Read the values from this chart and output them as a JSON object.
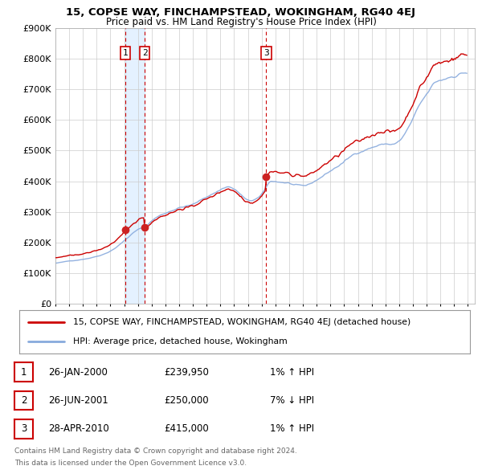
{
  "title": "15, COPSE WAY, FINCHAMPSTEAD, WOKINGHAM, RG40 4EJ",
  "subtitle": "Price paid vs. HM Land Registry's House Price Index (HPI)",
  "ylim": [
    0,
    900000
  ],
  "yticks": [
    0,
    100000,
    200000,
    300000,
    400000,
    500000,
    600000,
    700000,
    800000,
    900000
  ],
  "ytick_labels": [
    "£0",
    "£100K",
    "£200K",
    "£300K",
    "£400K",
    "£500K",
    "£600K",
    "£700K",
    "£800K",
    "£900K"
  ],
  "xlim_start": 1995.0,
  "xlim_end": 2025.5,
  "sale_dates": [
    2000.07,
    2001.49,
    2010.33
  ],
  "sale_prices": [
    239950,
    250000,
    415000
  ],
  "sale_labels": [
    "1",
    "2",
    "3"
  ],
  "red_line_color": "#cc0000",
  "blue_line_color": "#88aadd",
  "dashed_line_color": "#cc0000",
  "shade_color": "#ddeeff",
  "legend_label_red": "15, COPSE WAY, FINCHAMPSTEAD, WOKINGHAM, RG40 4EJ (detached house)",
  "legend_label_blue": "HPI: Average price, detached house, Wokingham",
  "table_rows": [
    [
      "1",
      "26-JAN-2000",
      "£239,950",
      "1% ↑ HPI"
    ],
    [
      "2",
      "26-JUN-2001",
      "£250,000",
      "7% ↓ HPI"
    ],
    [
      "3",
      "28-APR-2010",
      "£415,000",
      "1% ↑ HPI"
    ]
  ],
  "footnote1": "Contains HM Land Registry data © Crown copyright and database right 2024.",
  "footnote2": "This data is licensed under the Open Government Licence v3.0.",
  "background_color": "#ffffff",
  "grid_color": "#cccccc"
}
